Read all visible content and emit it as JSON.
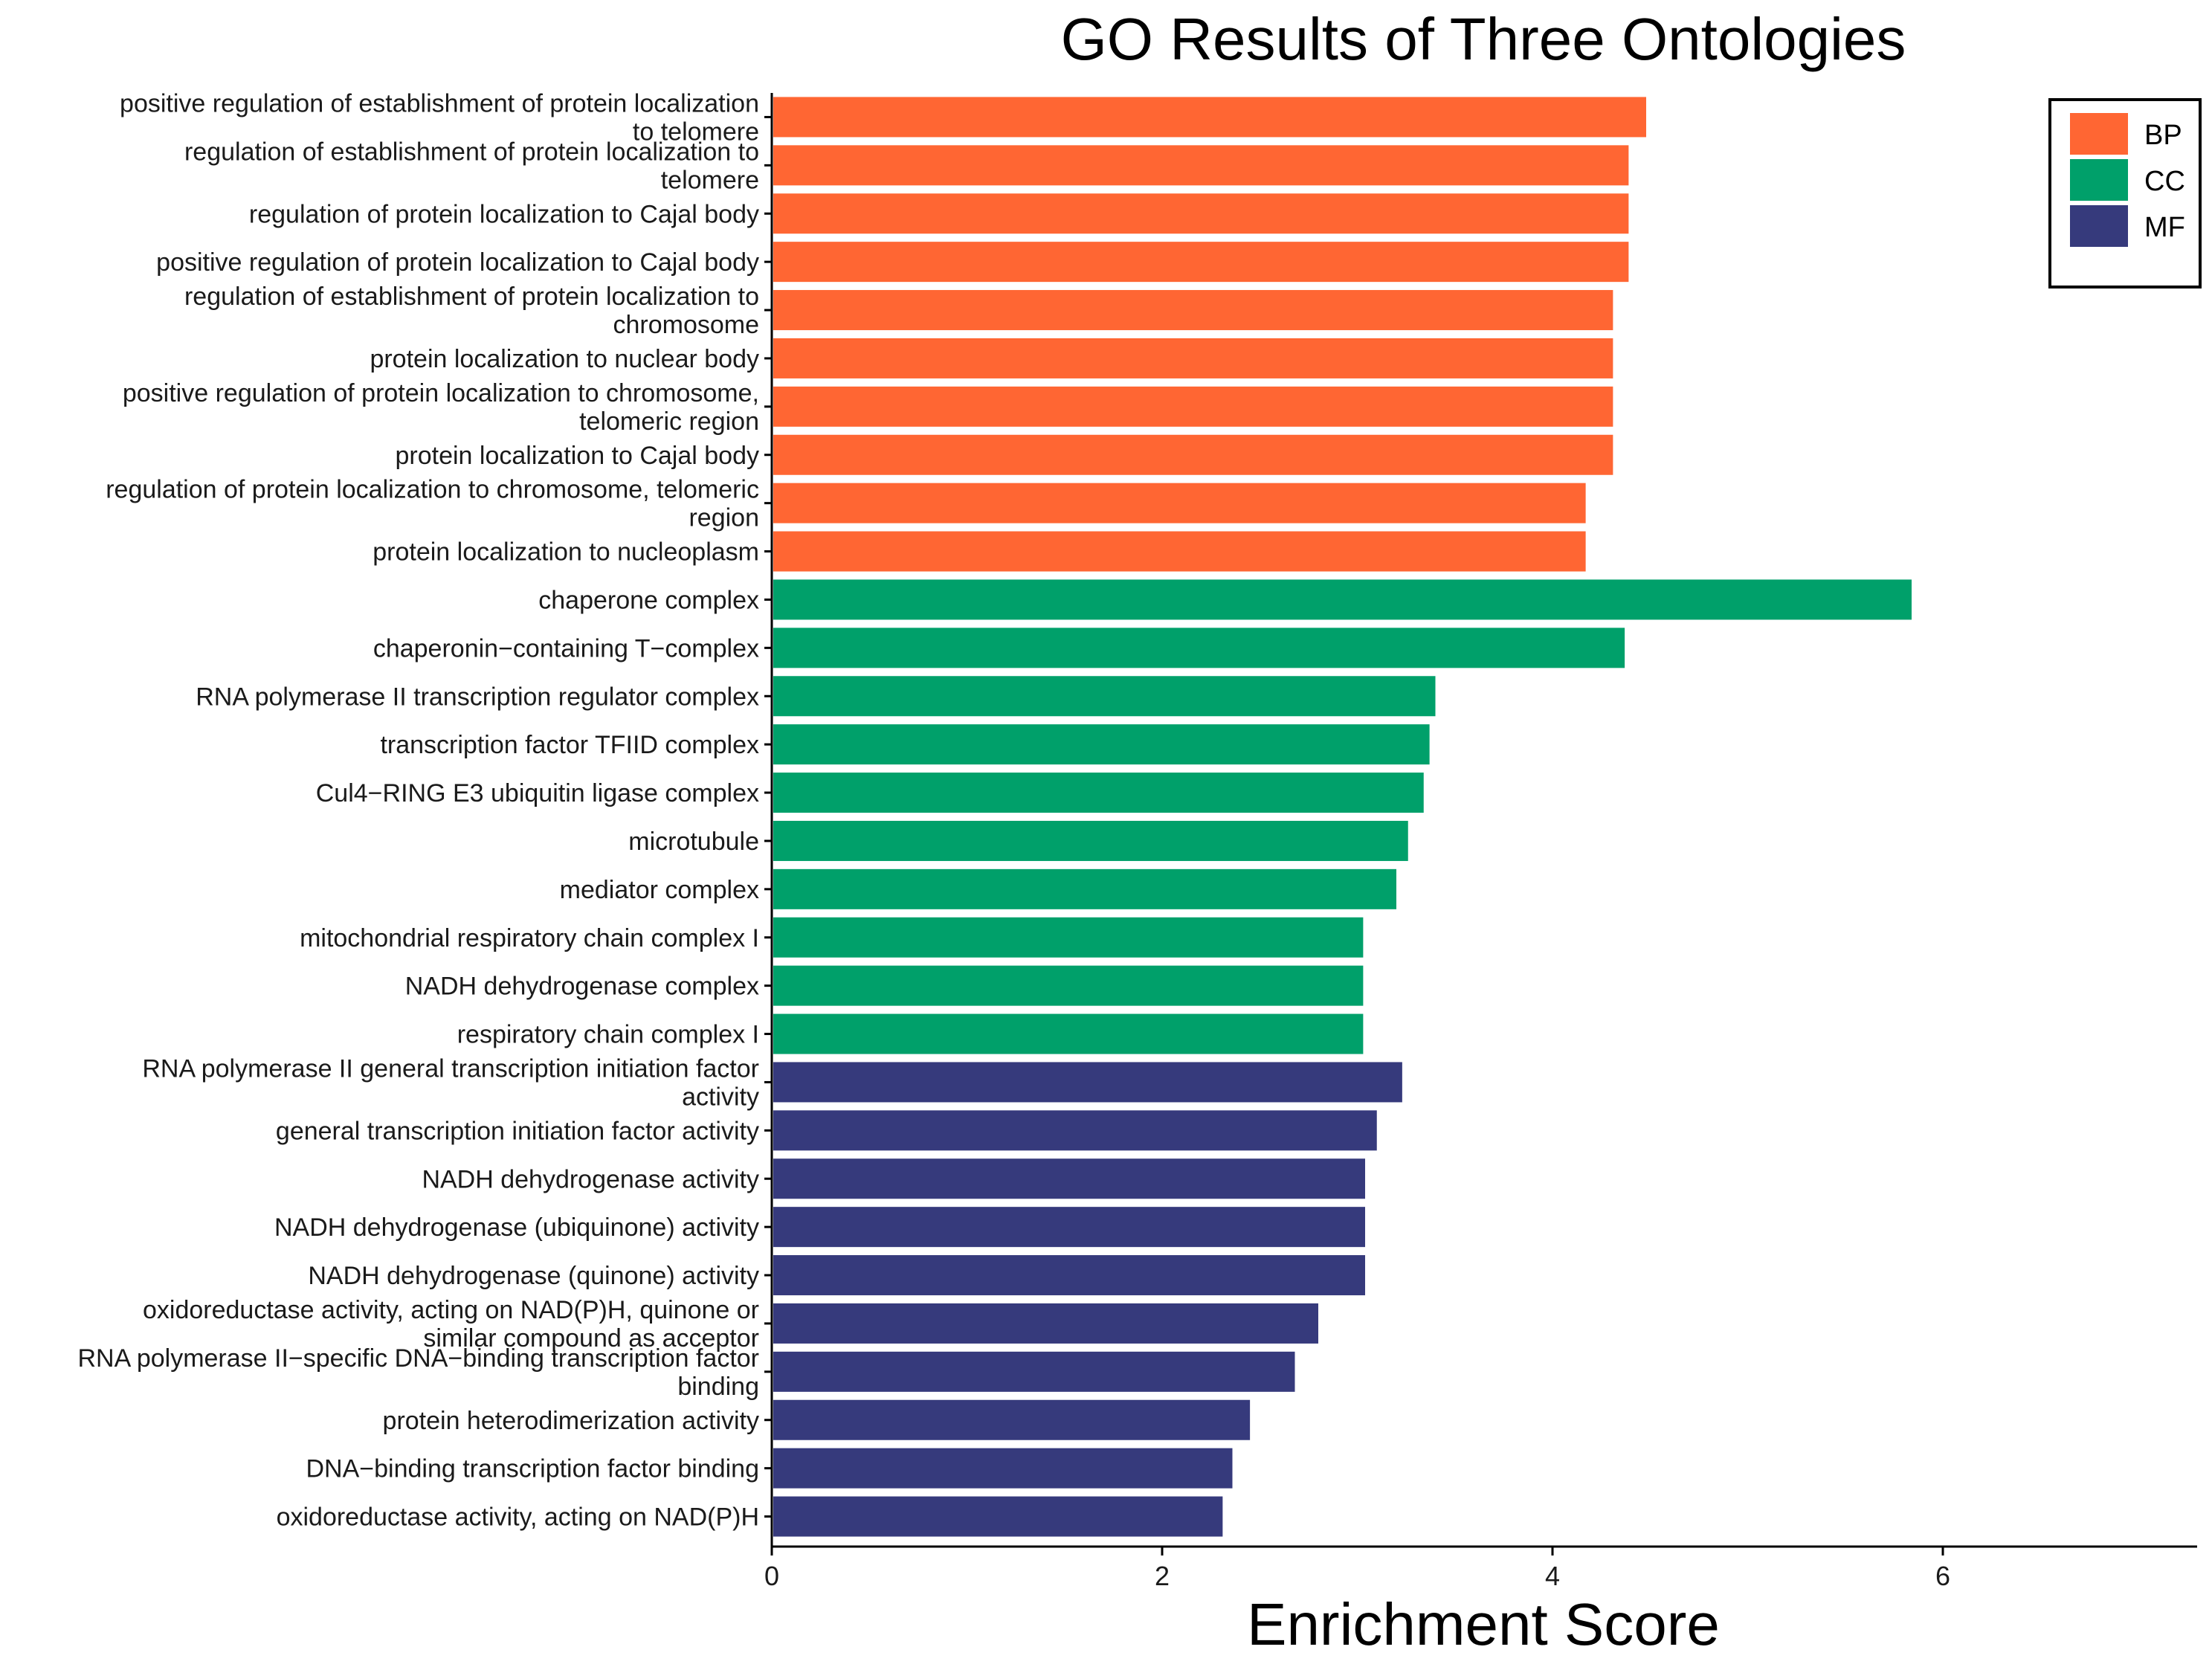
{
  "chart_data": {
    "type": "bar",
    "orientation": "horizontal",
    "title": "GO Results of Three Ontologies",
    "xlabel": "Enrichment Score",
    "ylabel": "",
    "xlim": [
      0,
      7.3
    ],
    "xticks": [
      0,
      2,
      4,
      6
    ],
    "legend_position": "top-right",
    "colors": {
      "BP": "#ff6633",
      "CC": "#00a06a",
      "MF": "#363a7c"
    },
    "legend": [
      "BP",
      "CC",
      "MF"
    ],
    "categories": [
      {
        "label": [
          "positive regulation of establishment of protein localization",
          "to telomere"
        ],
        "value": 4.48,
        "group": "BP"
      },
      {
        "label": [
          "regulation of establishment of protein localization to",
          "telomere"
        ],
        "value": 4.39,
        "group": "BP"
      },
      {
        "label": [
          "regulation of protein localization to Cajal body"
        ],
        "value": 4.39,
        "group": "BP"
      },
      {
        "label": [
          "positive regulation of protein localization to Cajal body"
        ],
        "value": 4.39,
        "group": "BP"
      },
      {
        "label": [
          "regulation of establishment of protein localization to",
          "chromosome"
        ],
        "value": 4.31,
        "group": "BP"
      },
      {
        "label": [
          "protein localization to nuclear body"
        ],
        "value": 4.31,
        "group": "BP"
      },
      {
        "label": [
          "positive regulation of protein localization to chromosome,",
          "telomeric region"
        ],
        "value": 4.31,
        "group": "BP"
      },
      {
        "label": [
          "protein localization to Cajal body"
        ],
        "value": 4.31,
        "group": "BP"
      },
      {
        "label": [
          "regulation of protein localization to chromosome, telomeric",
          "region"
        ],
        "value": 4.17,
        "group": "BP"
      },
      {
        "label": [
          "protein localization to nucleoplasm"
        ],
        "value": 4.17,
        "group": "BP"
      },
      {
        "label": [
          "chaperone complex"
        ],
        "value": 5.84,
        "group": "CC"
      },
      {
        "label": [
          "chaperonin−containing T−complex"
        ],
        "value": 4.37,
        "group": "CC"
      },
      {
        "label": [
          "RNA polymerase II transcription regulator complex"
        ],
        "value": 3.4,
        "group": "CC"
      },
      {
        "label": [
          "transcription factor TFIID complex"
        ],
        "value": 3.37,
        "group": "CC"
      },
      {
        "label": [
          "Cul4−RING E3 ubiquitin ligase complex"
        ],
        "value": 3.34,
        "group": "CC"
      },
      {
        "label": [
          "microtubule"
        ],
        "value": 3.26,
        "group": "CC"
      },
      {
        "label": [
          "mediator complex"
        ],
        "value": 3.2,
        "group": "CC"
      },
      {
        "label": [
          "mitochondrial respiratory chain complex I"
        ],
        "value": 3.03,
        "group": "CC"
      },
      {
        "label": [
          "NADH dehydrogenase complex"
        ],
        "value": 3.03,
        "group": "CC"
      },
      {
        "label": [
          "respiratory chain complex I"
        ],
        "value": 3.03,
        "group": "CC"
      },
      {
        "label": [
          "RNA polymerase II general transcription initiation factor",
          "activity"
        ],
        "value": 3.23,
        "group": "MF"
      },
      {
        "label": [
          "general transcription initiation factor activity"
        ],
        "value": 3.1,
        "group": "MF"
      },
      {
        "label": [
          "NADH dehydrogenase activity"
        ],
        "value": 3.04,
        "group": "MF"
      },
      {
        "label": [
          "NADH dehydrogenase (ubiquinone) activity"
        ],
        "value": 3.04,
        "group": "MF"
      },
      {
        "label": [
          "NADH dehydrogenase (quinone) activity"
        ],
        "value": 3.04,
        "group": "MF"
      },
      {
        "label": [
          "oxidoreductase activity, acting on NAD(P)H, quinone or",
          "similar compound as acceptor"
        ],
        "value": 2.8,
        "group": "MF"
      },
      {
        "label": [
          "RNA polymerase II−specific DNA−binding transcription factor",
          "binding"
        ],
        "value": 2.68,
        "group": "MF"
      },
      {
        "label": [
          "protein heterodimerization activity"
        ],
        "value": 2.45,
        "group": "MF"
      },
      {
        "label": [
          "DNA−binding transcription factor binding"
        ],
        "value": 2.36,
        "group": "MF"
      },
      {
        "label": [
          "oxidoreductase activity, acting on NAD(P)H"
        ],
        "value": 2.31,
        "group": "MF"
      }
    ]
  }
}
